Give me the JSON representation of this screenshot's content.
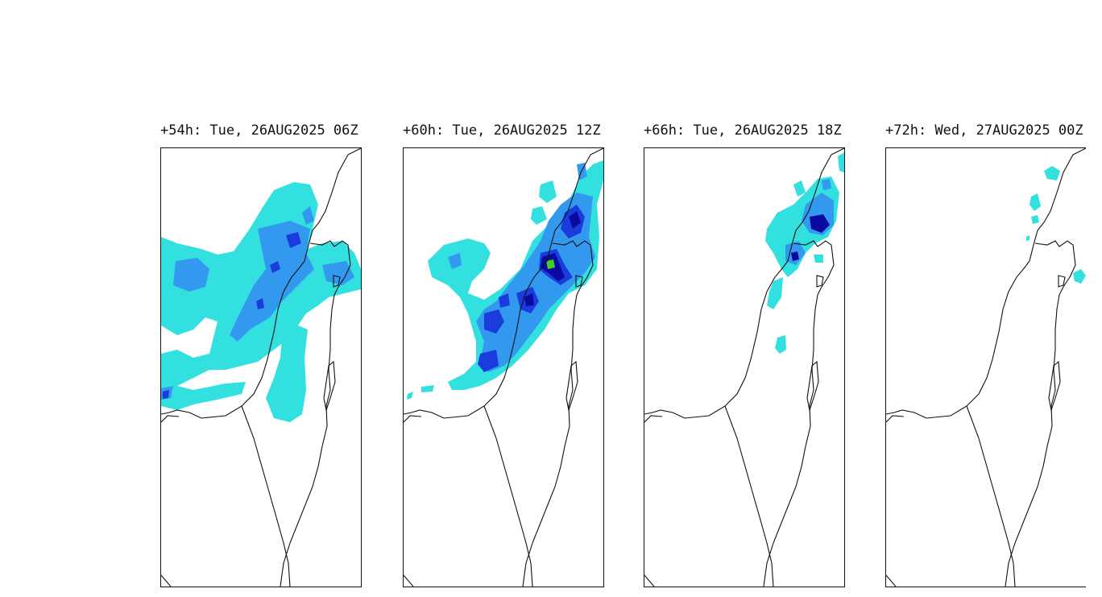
{
  "panels": [
    {
      "title": "+54h: Tue, 26AUG2025 06Z"
    },
    {
      "title": "+60h: Tue, 26AUG2025 12Z"
    },
    {
      "title": "+66h: Tue, 26AUG2025 18Z"
    },
    {
      "title": "+72h: Wed, 27AUG2025 00Z"
    }
  ],
  "colors": {
    "background": "#ffffff",
    "coastline": "#111111",
    "level_1": "#33e0e0",
    "level_2": "#3399ee",
    "level_3": "#1a3cdd",
    "level_4": "#0a0aa0",
    "level_5": "#44cc22"
  }
}
